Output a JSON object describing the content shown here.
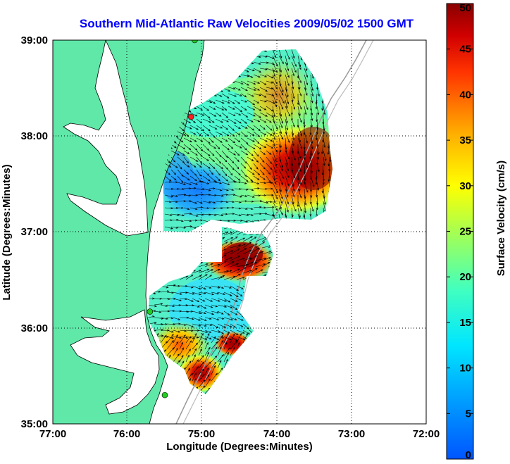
{
  "title": "Southern Mid-Atlantic Raw Velocities 2009/05/02 1500 GMT",
  "x_axis": {
    "label": "Longitude (Degrees:Minutes)",
    "ticks": [
      "77:00",
      "76:00",
      "75:00",
      "74:00",
      "73:00",
      "72:00"
    ]
  },
  "y_axis": {
    "label": "Latitude (Degrees:Minutes)",
    "ticks": [
      "39:00",
      "38:00",
      "37:00",
      "36:00",
      "35:00"
    ]
  },
  "colorbar": {
    "label": "Surface Velocity (cm/s)",
    "ticks": [
      "50",
      "45",
      "40",
      "35",
      "30",
      "25",
      "20",
      "15",
      "10",
      "5",
      "0"
    ],
    "range": [
      0,
      50
    ],
    "colormap": "jet"
  },
  "map": {
    "lon_range": [
      -77,
      -72
    ],
    "lat_range": [
      35,
      39
    ],
    "grid": "dotted",
    "land_color": "#5fe8a8",
    "stations": [
      {
        "lon": -75.1,
        "lat": 39.0,
        "color": "#22cc22"
      },
      {
        "lon": -75.15,
        "lat": 38.2,
        "color": "#ff2222"
      },
      {
        "lon": -75.7,
        "lat": 36.17,
        "color": "#22cc22"
      },
      {
        "lon": -75.5,
        "lat": 35.3,
        "color": "#22cc22"
      }
    ]
  }
}
